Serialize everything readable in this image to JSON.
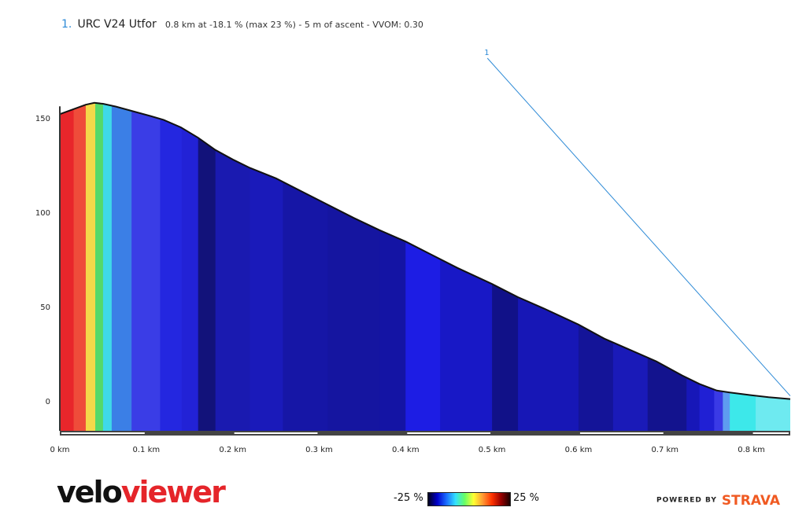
{
  "header": {
    "index": "1.",
    "segment_name": "URC V24 Utfor",
    "stats": "0.8 km at -18.1 % (max 23 %) - 5 m of ascent - VVOM: 0.30"
  },
  "marker": {
    "label": "1"
  },
  "legend": {
    "min_label": "-25 %",
    "max_label": "25 %",
    "colors": [
      "#00001a",
      "#0000cc",
      "#1a6cff",
      "#33e0ff",
      "#66ff66",
      "#ffff33",
      "#ff9933",
      "#ff3300",
      "#990000",
      "#1a0000"
    ]
  },
  "logo": {
    "part1": "velo",
    "part2": "viewer"
  },
  "powered": {
    "prefix": "POWERED BY",
    "brand": "STRAVA"
  },
  "chart_data": {
    "type": "area",
    "xlabel": "",
    "ylabel": "",
    "xlim": [
      0,
      0.845
    ],
    "ylim": [
      -15,
      160
    ],
    "x_ticks": [
      0,
      0.1,
      0.2,
      0.3,
      0.4,
      0.5,
      0.6,
      0.7,
      0.8
    ],
    "x_tick_labels": [
      "0 km",
      "0.1 km",
      "0.2 km",
      "0.3 km",
      "0.4 km",
      "0.5 km",
      "0.6 km",
      "0.7 km",
      "0.8 km"
    ],
    "y_ticks": [
      0,
      50,
      100,
      150
    ],
    "y_tick_labels": [
      "0",
      "50",
      "100",
      "150"
    ],
    "profile": [
      [
        0,
        152
      ],
      [
        0.015,
        154.5
      ],
      [
        0.03,
        157
      ],
      [
        0.04,
        158
      ],
      [
        0.05,
        157.5
      ],
      [
        0.065,
        156
      ],
      [
        0.085,
        153.5
      ],
      [
        0.105,
        151
      ],
      [
        0.12,
        149
      ],
      [
        0.14,
        145
      ],
      [
        0.16,
        139.5
      ],
      [
        0.18,
        133
      ],
      [
        0.2,
        128
      ],
      [
        0.22,
        123.5
      ],
      [
        0.25,
        118
      ],
      [
        0.28,
        111
      ],
      [
        0.31,
        104
      ],
      [
        0.34,
        97
      ],
      [
        0.37,
        90.5
      ],
      [
        0.4,
        84.5
      ],
      [
        0.43,
        77.5
      ],
      [
        0.46,
        70.5
      ],
      [
        0.5,
        62
      ],
      [
        0.53,
        55
      ],
      [
        0.56,
        49
      ],
      [
        0.6,
        40.5
      ],
      [
        0.63,
        33
      ],
      [
        0.66,
        27
      ],
      [
        0.69,
        21
      ],
      [
        0.72,
        13.5
      ],
      [
        0.74,
        9
      ],
      [
        0.76,
        5.5
      ],
      [
        0.775,
        4.5
      ],
      [
        0.8,
        3
      ],
      [
        0.82,
        2
      ],
      [
        0.845,
        1
      ]
    ],
    "segments": [
      {
        "x0": 0.0,
        "x1": 0.016,
        "color": "#e8262b"
      },
      {
        "x0": 0.016,
        "x1": 0.03,
        "color": "#ef4c3a"
      },
      {
        "x0": 0.03,
        "x1": 0.041,
        "color": "#f4d94a"
      },
      {
        "x0": 0.041,
        "x1": 0.05,
        "color": "#55d96a"
      },
      {
        "x0": 0.05,
        "x1": 0.06,
        "color": "#3fd9e8"
      },
      {
        "x0": 0.06,
        "x1": 0.083,
        "color": "#3b7fe6"
      },
      {
        "x0": 0.083,
        "x1": 0.116,
        "color": "#3a3de6"
      },
      {
        "x0": 0.116,
        "x1": 0.141,
        "color": "#2427e0"
      },
      {
        "x0": 0.141,
        "x1": 0.16,
        "color": "#2222d6"
      },
      {
        "x0": 0.16,
        "x1": 0.18,
        "color": "#12127a"
      },
      {
        "x0": 0.18,
        "x1": 0.22,
        "color": "#1a1ab0"
      },
      {
        "x0": 0.22,
        "x1": 0.258,
        "color": "#1a1aba"
      },
      {
        "x0": 0.258,
        "x1": 0.31,
        "color": "#1616a6"
      },
      {
        "x0": 0.31,
        "x1": 0.37,
        "color": "#1515a0"
      },
      {
        "x0": 0.37,
        "x1": 0.4,
        "color": "#1414a4"
      },
      {
        "x0": 0.4,
        "x1": 0.44,
        "color": "#1d1de4"
      },
      {
        "x0": 0.44,
        "x1": 0.5,
        "color": "#1818c6"
      },
      {
        "x0": 0.5,
        "x1": 0.53,
        "color": "#111188"
      },
      {
        "x0": 0.53,
        "x1": 0.6,
        "color": "#1717b6"
      },
      {
        "x0": 0.6,
        "x1": 0.64,
        "color": "#141498"
      },
      {
        "x0": 0.64,
        "x1": 0.68,
        "color": "#1a1ab8"
      },
      {
        "x0": 0.68,
        "x1": 0.725,
        "color": "#13138e"
      },
      {
        "x0": 0.725,
        "x1": 0.74,
        "color": "#1717b8"
      },
      {
        "x0": 0.74,
        "x1": 0.757,
        "color": "#2020d4"
      },
      {
        "x0": 0.757,
        "x1": 0.767,
        "color": "#3a3ae6"
      },
      {
        "x0": 0.767,
        "x1": 0.775,
        "color": "#5e9cf0"
      },
      {
        "x0": 0.775,
        "x1": 0.805,
        "color": "#3de8ea"
      },
      {
        "x0": 0.805,
        "x1": 0.845,
        "color": "#6eeaf0"
      }
    ],
    "marker_line": {
      "from": [
        0.42,
        213
      ],
      "to": [
        0.845,
        1
      ]
    }
  }
}
